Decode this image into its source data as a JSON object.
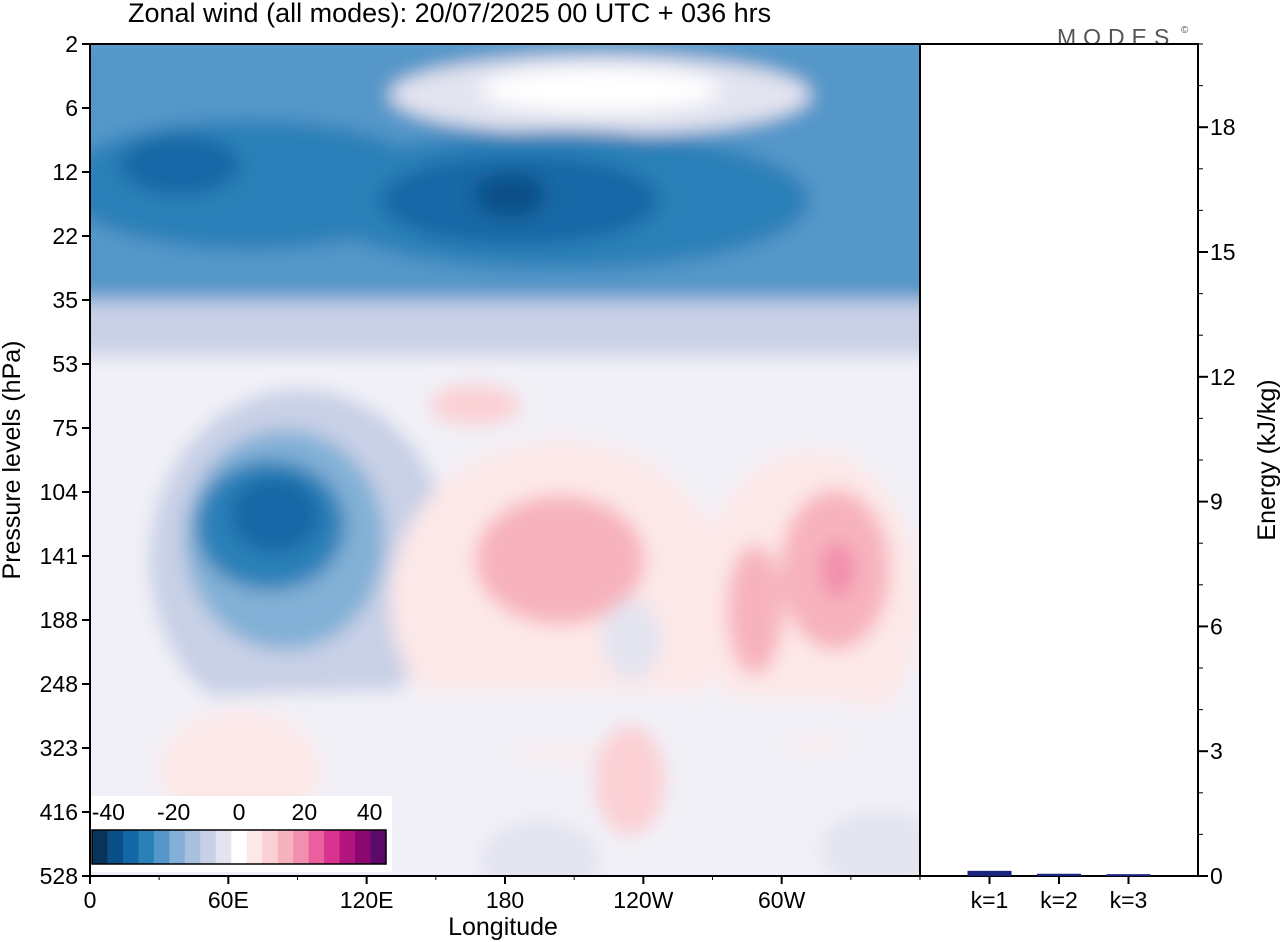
{
  "title": "Zonal wind (all modes):  20/07/2025  00 UTC  + 036 hrs",
  "logo": "MODES",
  "logo_mark": "©",
  "chart_data": [
    {
      "type": "heatmap",
      "xlabel": "Longitude",
      "ylabel": "Pressure levels (hPa)",
      "x_ticks": [
        "0",
        "60E",
        "120E",
        "180",
        "120W",
        "60W"
      ],
      "x_tick_degrees": [
        0,
        60,
        120,
        180,
        240,
        300
      ],
      "xlim_degrees": [
        0,
        360
      ],
      "y_ticks": [
        2,
        6,
        12,
        22,
        35,
        53,
        75,
        104,
        141,
        188,
        248,
        323,
        416,
        528
      ],
      "y_ticks_inverted": true,
      "colorbar": {
        "ticks": [
          -40,
          -20,
          0,
          20,
          40
        ],
        "range": [
          -45,
          45
        ],
        "levels": [
          -45,
          -40,
          -35,
          -30,
          -25,
          -20,
          -15,
          -10,
          -5,
          0,
          5,
          10,
          15,
          20,
          25,
          30,
          35,
          40,
          45
        ],
        "colors": [
          "#08345c",
          "#0b4f88",
          "#1467a6",
          "#2b80b8",
          "#5597c9",
          "#82b0d6",
          "#a8c0de",
          "#c8d0e6",
          "#e3e4f0",
          "#ffffff",
          "#fde8e8",
          "#fbd0d4",
          "#f7b3bd",
          "#f28fae",
          "#ea5f9e",
          "#d8348f",
          "#b3157e",
          "#8a0870",
          "#5c0a6a"
        ]
      }
    },
    {
      "type": "bar",
      "ylabel": "Energy (kJ/kg)",
      "categories": [
        "k=1",
        "k=2",
        "k=3"
      ],
      "values": [
        0.1,
        0.03,
        0.02
      ],
      "ylim": [
        0,
        20
      ],
      "y_ticks": [
        0,
        3,
        6,
        9,
        12,
        15,
        18
      ],
      "bar_color": "#1a237e"
    }
  ]
}
